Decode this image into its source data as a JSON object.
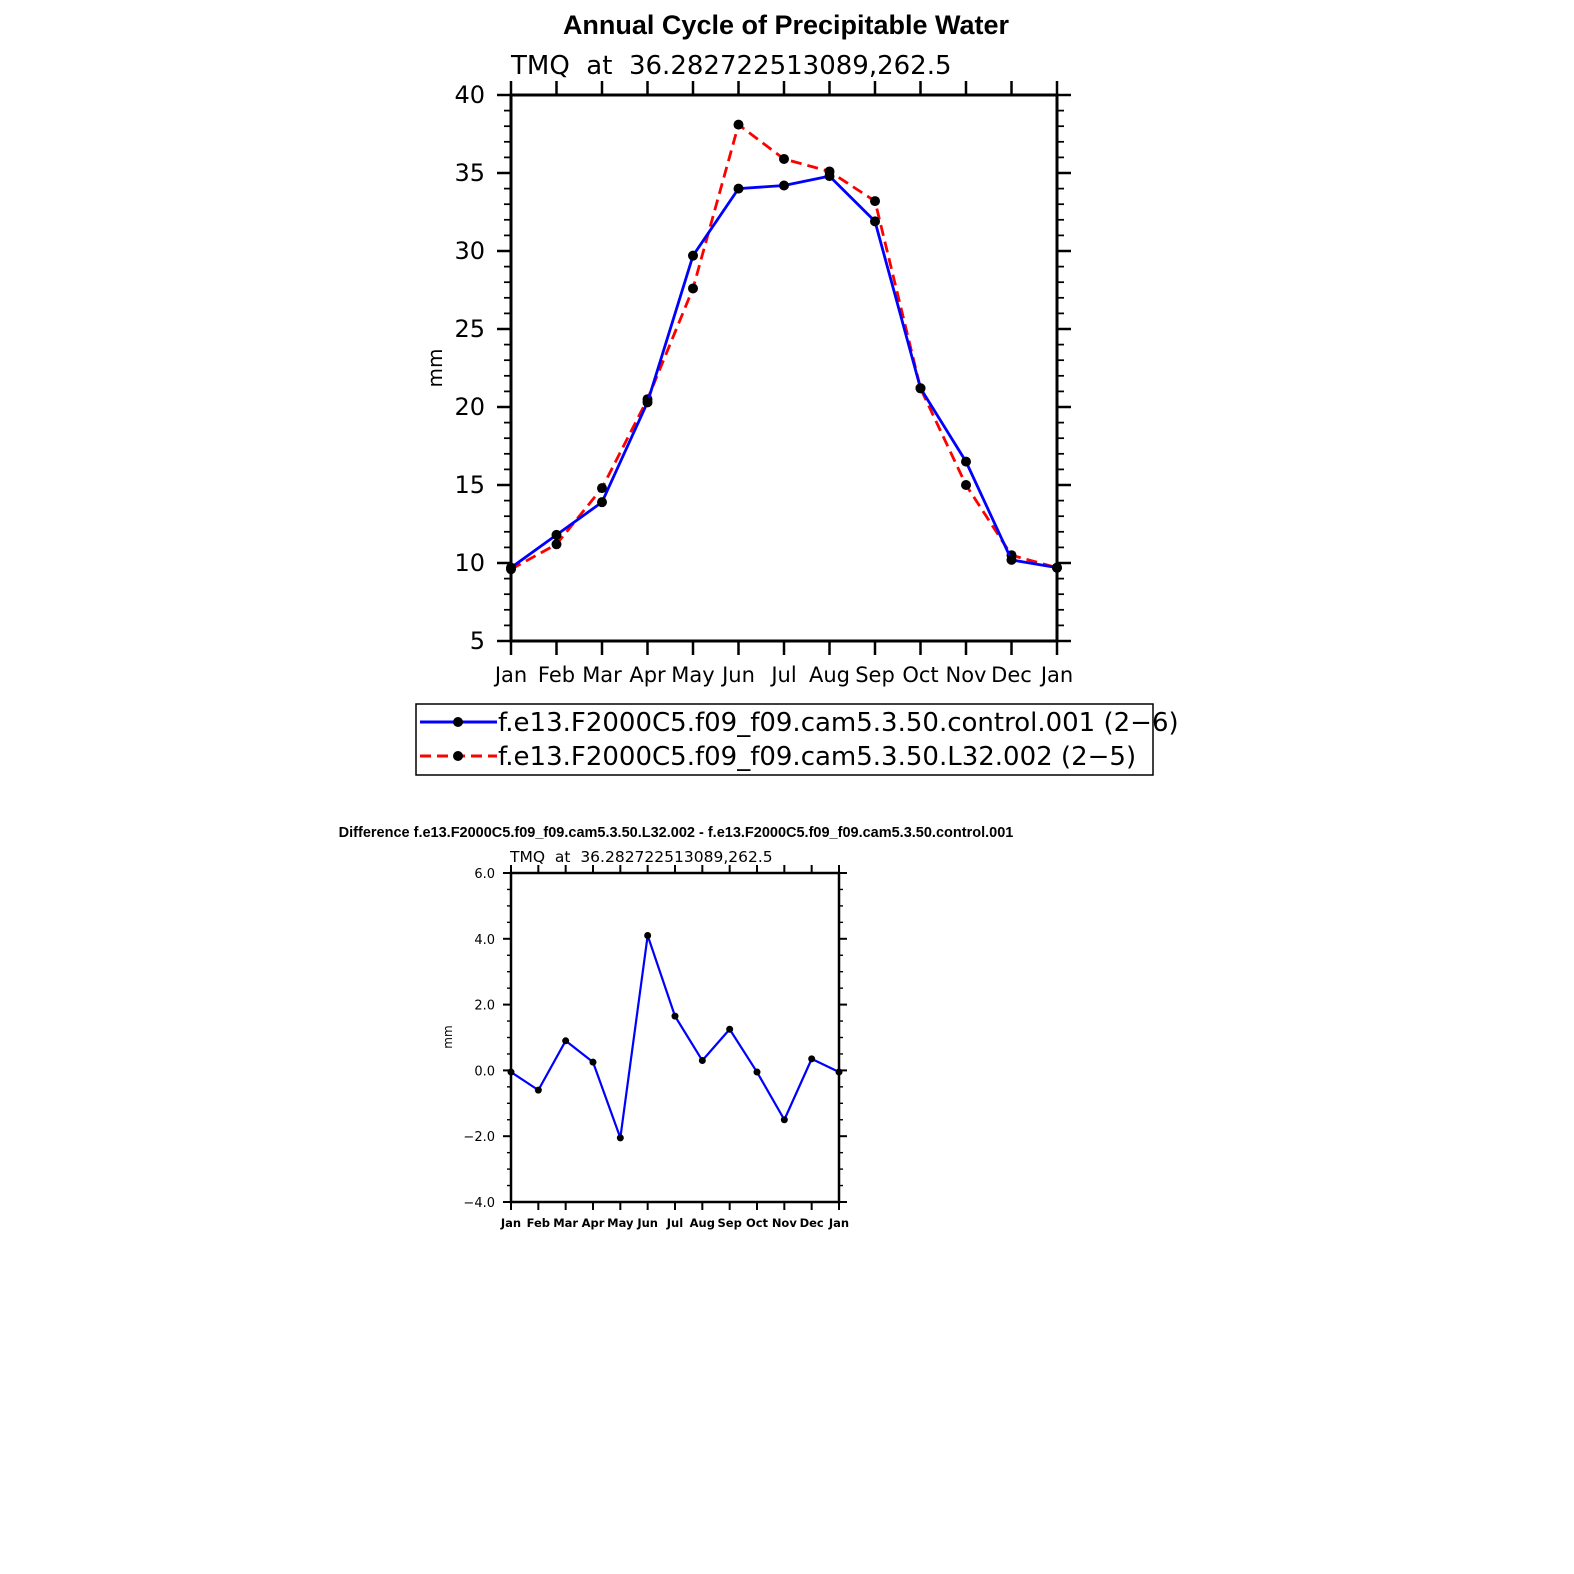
{
  "chart_data": [
    {
      "type": "line",
      "title": "Annual Cycle of Precipitable Water",
      "subtitle": "TMQ  at  36.282722513089,262.5",
      "xlabel": "",
      "ylabel": "mm",
      "categories": [
        "Jan",
        "Feb",
        "Mar",
        "Apr",
        "May",
        "Jun",
        "Jul",
        "Aug",
        "Sep",
        "Oct",
        "Nov",
        "Dec",
        "Jan"
      ],
      "ylim": [
        5,
        40
      ],
      "yticks": [
        5,
        10,
        15,
        20,
        25,
        30,
        35,
        40
      ],
      "ytick_labels": [
        "5",
        "10",
        "15",
        "20",
        "25",
        "30",
        "35",
        "40"
      ],
      "legend_position": "bottom",
      "series": [
        {
          "name": "f.e13.F2000C5.f09_f09.cam5.3.50.control.001 (2−6)",
          "color": "#0000ff",
          "style": "solid",
          "values": [
            9.7,
            11.8,
            13.9,
            20.3,
            29.7,
            34.0,
            34.2,
            34.8,
            31.9,
            21.2,
            16.5,
            10.2,
            9.7
          ]
        },
        {
          "name": "f.e13.F2000C5.f09_f09.cam5.3.50.L32.002 (2−5)",
          "color": "#ff0000",
          "style": "dashed",
          "values": [
            9.6,
            11.2,
            14.8,
            20.5,
            27.6,
            38.1,
            35.9,
            35.1,
            33.2,
            21.2,
            15.0,
            10.5,
            9.7
          ]
        }
      ]
    },
    {
      "type": "line",
      "title": "Difference f.e13.F2000C5.f09_f09.cam5.3.50.L32.002 - f.e13.F2000C5.f09_f09.cam5.3.50.control.001",
      "subtitle": "TMQ  at  36.282722513089,262.5",
      "xlabel": "",
      "ylabel": "mm",
      "categories": [
        "Jan",
        "Feb",
        "Mar",
        "Apr",
        "May",
        "Jun",
        "Jul",
        "Aug",
        "Sep",
        "Oct",
        "Nov",
        "Dec",
        "Jan"
      ],
      "ylim": [
        -4.0,
        6.0
      ],
      "yticks": [
        -4,
        -2,
        0,
        2,
        4,
        6
      ],
      "ytick_labels": [
        "−4.0",
        "−2.0",
        "0.0",
        "2.0",
        "4.0",
        "6.0"
      ],
      "series": [
        {
          "color": "#0000ff",
          "style": "solid",
          "values": [
            -0.05,
            -0.6,
            0.9,
            0.25,
            -2.05,
            4.1,
            1.65,
            0.3,
            1.25,
            -0.05,
            -1.5,
            0.35,
            -0.05
          ]
        }
      ]
    }
  ]
}
